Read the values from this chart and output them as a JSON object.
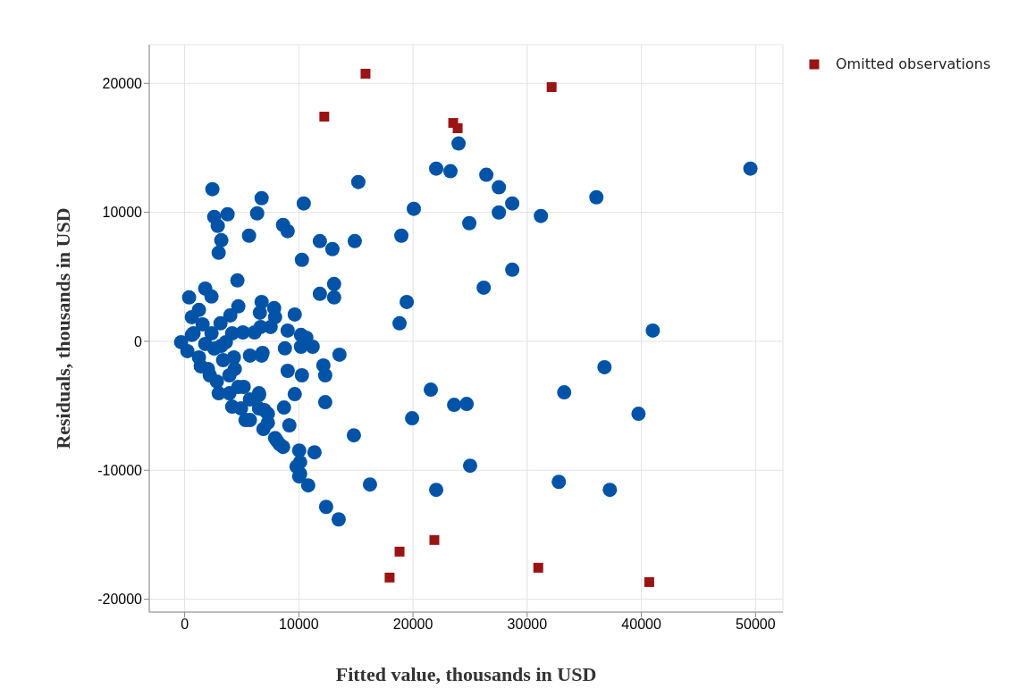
{
  "chart_data": {
    "type": "scatter",
    "xlabel": "Fitted value, thousands in USD",
    "ylabel": "Residuals, thousands in USD",
    "xlim": [
      -3100,
      52400
    ],
    "ylim": [
      -21000,
      23000
    ],
    "xticks": [
      0,
      10000,
      20000,
      30000,
      40000,
      50000
    ],
    "yticks": [
      -20000,
      -10000,
      0,
      10000,
      20000
    ],
    "grid": true,
    "legend": "top right",
    "series": [
      {
        "color": "#0053a6",
        "marker": "circle",
        "x": [
          49550,
          36060,
          31200,
          28690,
          27520,
          27520,
          26420,
          28690,
          26190,
          24930,
          23990,
          23280,
          22030,
          20070,
          18980,
          19450,
          18820,
          15210,
          14900,
          12940,
          11840,
          10430,
          10270,
          13090,
          13090,
          11840,
          41000,
          36770,
          33240,
          39750,
          32770,
          37240,
          21560,
          19920,
          23600,
          24700,
          25000,
          22030,
          16230,
          14820,
          13560,
          12150,
          12310,
          12310,
          11370,
          12390,
          13490,
          10820,
          10110,
          10110,
          10030,
          9640,
          9020,
          9170,
          8700,
          8780,
          9640,
          7840,
          10190,
          10660,
          11210,
          8620,
          8070,
          6510,
          6900,
          6980,
          6820,
          5720,
          6740,
          6590,
          6660,
          7530,
          6350,
          6740,
          5640,
          8620,
          9020,
          2980,
          3210,
          2900,
          2590,
          3760,
          2430,
          4620,
          4700,
          4000,
          3140,
          4160,
          5100,
          6120,
          7920,
          9020,
          10190,
          10270,
          9800,
          10030,
          8310,
          6740,
          390,
          1800,
          2350,
          630,
          1250,
          1570,
          -310,
          240,
          1250,
          2040,
          2820,
          3920,
          4940,
          5720,
          3370,
          4390,
          4700,
          5720,
          6510,
          7290,
          2350,
          3210,
          4310,
          3610,
          780,
          1800,
          2590,
          3920,
          5170,
          6510,
          7290,
          7920,
          630,
          1410,
          2200,
          2980,
          4160,
          5330
        ],
        "values": [
          13390,
          11170,
          9720,
          10690,
          9990,
          11940,
          12910,
          5550,
          4160,
          9160,
          15340,
          13190,
          13390,
          10270,
          8190,
          3050,
          1390,
          12350,
          7770,
          7150,
          7770,
          10690,
          6320,
          4440,
          3400,
          3680,
          830,
          -2010,
          -3960,
          -5620,
          -10900,
          -11520,
          -3750,
          -5970,
          -4930,
          -4860,
          -9650,
          -11520,
          -11100,
          -7290,
          -1040,
          -1870,
          -2640,
          -4720,
          -8610,
          -12840,
          -13810,
          -11170,
          -9370,
          -10270,
          -8470,
          -4100,
          -2290,
          -6520,
          -5140,
          -550,
          2080,
          2570,
          -420,
          280,
          -420,
          -8190,
          -7700,
          -4160,
          -6800,
          -5340,
          -900,
          -1110,
          3050,
          2220,
          1110,
          1110,
          9920,
          11100,
          8190,
          9020,
          8540,
          6870,
          7840,
          8950,
          9650,
          9850,
          11800,
          4720,
          2710,
          2010,
          1390,
          620,
          690,
          690,
          1870,
          830,
          490,
          -2640,
          -9720,
          -10480,
          -7980,
          -1110,
          3400,
          4090,
          3470,
          1870,
          2430,
          1320,
          -70,
          -760,
          -1250,
          -2150,
          -3120,
          -4030,
          -5210,
          -6110,
          -1460,
          -2150,
          -3540,
          -4510,
          -4030,
          -5620,
          620,
          -350,
          -1250,
          -70,
          620,
          -210,
          -560,
          -2640,
          -3540,
          -5210,
          -6320,
          -7500,
          490,
          -1940,
          -2640,
          -4030,
          -5070,
          -6110
        ]
      },
      {
        "name": "Omitted observations",
        "color": "#9a1414",
        "marker": "square",
        "x": [
          12230,
          15840,
          23520,
          23910,
          32140,
          17950,
          18820,
          21870,
          30970,
          40690
        ],
        "values": [
          17420,
          20750,
          16930,
          16520,
          19710,
          -18320,
          -16310,
          -15410,
          -17560,
          -18670
        ]
      }
    ]
  }
}
